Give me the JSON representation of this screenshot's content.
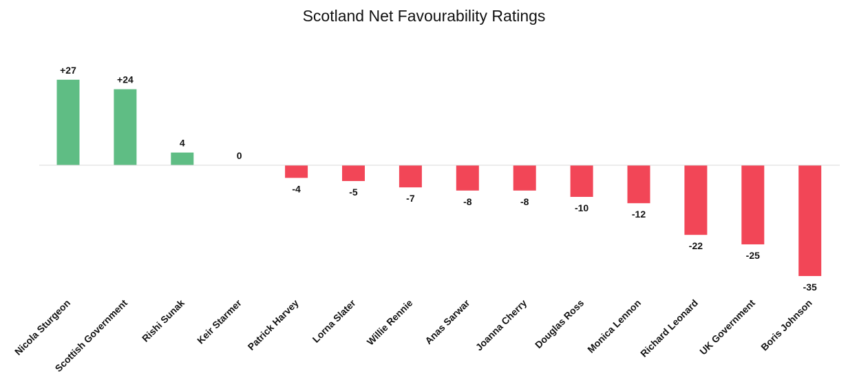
{
  "chart_data": {
    "type": "bar",
    "title": "Scotland Net Favourability Ratings",
    "xlabel": "",
    "ylabel": "",
    "ylim": [
      -35,
      27
    ],
    "grid": false,
    "legend": "none",
    "categories": [
      "Nicola Sturgeon",
      "Scottish Government",
      "Rishi Sunak",
      "Keir Starmer",
      "Patrick Harvey",
      "Lorna Slater",
      "Willie Rennie",
      "Anas Sarwar",
      "Joanna Cherry",
      "Douglas Ross",
      "Monica Lennon",
      "Richard Leonard",
      "UK Government",
      "Boris Johnson"
    ],
    "values": [
      27,
      24,
      4,
      0,
      -4,
      -5,
      -7,
      -8,
      -8,
      -10,
      -12,
      -22,
      -25,
      -35
    ],
    "data_labels": [
      "+27",
      "+24",
      "4",
      "0",
      "-4",
      "-5",
      "-7",
      "-8",
      "-8",
      "-10",
      "-12",
      "-22",
      "-25",
      "-35"
    ],
    "colors": {
      "positive": "#5fbd84",
      "negative": "#f24657",
      "axis": "#d9d9d9"
    }
  }
}
